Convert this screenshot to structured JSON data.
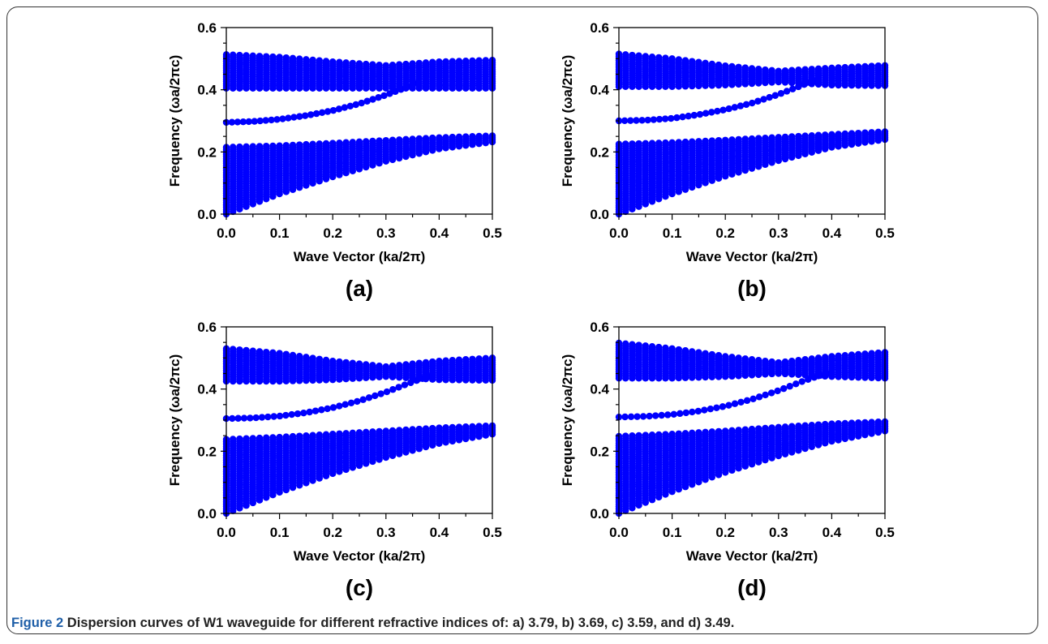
{
  "caption": {
    "label": "Figure 2",
    "text": " Dispersion curves of W1 waveguide for different refractive indices of: a) 3.79, b) 3.69, c) 3.59, and d) 3.49."
  },
  "colors": {
    "band": "#0000ff",
    "axis": "#000000",
    "frame": "#333333",
    "caption_label": "#1f5fa8"
  },
  "chart_data": [
    {
      "type": "scatter",
      "panel_label": "(a)",
      "xlabel": "Wave Vector (ka/2π)",
      "ylabel": "Frequency (ωa/2πc)",
      "xlim": [
        0.0,
        0.5
      ],
      "ylim": [
        0.0,
        0.6
      ],
      "xticks": [
        "0.0",
        "0.1",
        "0.2",
        "0.3",
        "0.4",
        "0.5"
      ],
      "yticks": [
        "0.0",
        "0.2",
        "0.4",
        "0.6"
      ],
      "lower_band": {
        "x": [
          0.0,
          0.1,
          0.2,
          0.3,
          0.4,
          0.5
        ],
        "top": [
          0.215,
          0.22,
          0.228,
          0.237,
          0.246,
          0.252
        ],
        "bottom": [
          0.0,
          0.065,
          0.12,
          0.17,
          0.21,
          0.232
        ]
      },
      "upper_band": {
        "x": [
          0.0,
          0.1,
          0.2,
          0.3,
          0.4,
          0.5
        ],
        "top": [
          0.513,
          0.505,
          0.49,
          0.478,
          0.49,
          0.495
        ],
        "bottom": [
          0.405,
          0.405,
          0.405,
          0.405,
          0.405,
          0.405
        ]
      },
      "guided_mode": {
        "x": [
          0.0,
          0.05,
          0.1,
          0.15,
          0.2,
          0.25,
          0.3,
          0.35,
          0.36
        ],
        "y": [
          0.295,
          0.298,
          0.305,
          0.317,
          0.333,
          0.355,
          0.383,
          0.415,
          0.422
        ]
      }
    },
    {
      "type": "scatter",
      "panel_label": "(b)",
      "xlabel": "Wave Vector (ka/2π)",
      "ylabel": "Frequency (ωa/2πc)",
      "xlim": [
        0.0,
        0.5
      ],
      "ylim": [
        0.0,
        0.6
      ],
      "xticks": [
        "0.0",
        "0.1",
        "0.2",
        "0.3",
        "0.4",
        "0.5"
      ],
      "yticks": [
        "0.0",
        "0.2",
        "0.4",
        "0.6"
      ],
      "lower_band": {
        "x": [
          0.0,
          0.1,
          0.2,
          0.3,
          0.4,
          0.5
        ],
        "top": [
          0.225,
          0.23,
          0.238,
          0.247,
          0.256,
          0.265
        ],
        "bottom": [
          0.0,
          0.065,
          0.122,
          0.172,
          0.215,
          0.24
        ]
      },
      "upper_band": {
        "x": [
          0.0,
          0.1,
          0.2,
          0.3,
          0.4,
          0.5
        ],
        "top": [
          0.515,
          0.5,
          0.477,
          0.46,
          0.47,
          0.478
        ],
        "bottom": [
          0.41,
          0.41,
          0.415,
          0.425,
          0.415,
          0.413
        ]
      },
      "guided_mode": {
        "x": [
          0.0,
          0.05,
          0.1,
          0.15,
          0.2,
          0.25,
          0.3,
          0.35,
          0.37
        ],
        "y": [
          0.3,
          0.302,
          0.308,
          0.32,
          0.336,
          0.357,
          0.385,
          0.418,
          0.428
        ]
      }
    },
    {
      "type": "scatter",
      "panel_label": "(c)",
      "xlabel": "Wave Vector (ka/2π)",
      "ylabel": "Frequency (ωa/2πc)",
      "xlim": [
        0.0,
        0.5
      ],
      "ylim": [
        0.0,
        0.6
      ],
      "xticks": [
        "0.0",
        "0.1",
        "0.2",
        "0.3",
        "0.4",
        "0.5"
      ],
      "yticks": [
        "0.0",
        "0.2",
        "0.4",
        "0.6"
      ],
      "lower_band": {
        "x": [
          0.0,
          0.1,
          0.2,
          0.3,
          0.4,
          0.5
        ],
        "top": [
          0.238,
          0.245,
          0.255,
          0.265,
          0.275,
          0.282
        ],
        "bottom": [
          0.0,
          0.068,
          0.128,
          0.18,
          0.225,
          0.255
        ]
      },
      "upper_band": {
        "x": [
          0.0,
          0.1,
          0.2,
          0.3,
          0.4,
          0.5
        ],
        "top": [
          0.53,
          0.515,
          0.49,
          0.472,
          0.49,
          0.5
        ],
        "bottom": [
          0.425,
          0.425,
          0.43,
          0.44,
          0.43,
          0.428
        ]
      },
      "guided_mode": {
        "x": [
          0.0,
          0.05,
          0.1,
          0.15,
          0.2,
          0.25,
          0.3,
          0.35,
          0.38
        ],
        "y": [
          0.305,
          0.307,
          0.313,
          0.324,
          0.34,
          0.362,
          0.39,
          0.423,
          0.44
        ]
      }
    },
    {
      "type": "scatter",
      "panel_label": "(d)",
      "xlabel": "Wave Vector (ka/2π)",
      "ylabel": "Frequency (ωa/2πc)",
      "xlim": [
        0.0,
        0.5
      ],
      "ylim": [
        0.0,
        0.6
      ],
      "xticks": [
        "0.0",
        "0.1",
        "0.2",
        "0.3",
        "0.4",
        "0.5"
      ],
      "yticks": [
        "0.0",
        "0.2",
        "0.4",
        "0.6"
      ],
      "lower_band": {
        "x": [
          0.0,
          0.1,
          0.2,
          0.3,
          0.4,
          0.5
        ],
        "top": [
          0.248,
          0.255,
          0.265,
          0.277,
          0.288,
          0.295
        ],
        "bottom": [
          0.0,
          0.07,
          0.132,
          0.185,
          0.232,
          0.265
        ]
      },
      "upper_band": {
        "x": [
          0.0,
          0.1,
          0.2,
          0.3,
          0.4,
          0.5
        ],
        "top": [
          0.548,
          0.53,
          0.505,
          0.485,
          0.505,
          0.518
        ],
        "bottom": [
          0.435,
          0.435,
          0.44,
          0.45,
          0.44,
          0.435
        ]
      },
      "guided_mode": {
        "x": [
          0.0,
          0.05,
          0.1,
          0.15,
          0.2,
          0.25,
          0.3,
          0.35,
          0.39
        ],
        "y": [
          0.31,
          0.312,
          0.318,
          0.329,
          0.345,
          0.367,
          0.395,
          0.428,
          0.45
        ]
      }
    }
  ]
}
